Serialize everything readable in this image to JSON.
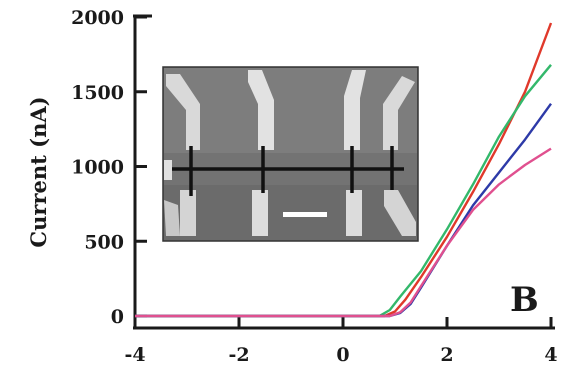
{
  "chart_data": {
    "type": "line",
    "title": "",
    "xlabel": "",
    "ylabel": "Current (nA)",
    "panel_label": "B",
    "xlim": [
      -4,
      4
    ],
    "ylim": [
      0,
      2000
    ],
    "x_ticks": [
      "-4",
      "-2",
      "0",
      "2",
      "4"
    ],
    "y_ticks": [
      "0",
      "500",
      "1000",
      "1500",
      "2000"
    ],
    "grid": false,
    "legend": "none",
    "series": [
      {
        "color": "#e0392b",
        "x": [
          -4,
          0.8,
          1.0,
          1.2,
          1.5,
          2.0,
          2.5,
          3.0,
          3.5,
          4.0
        ],
        "y": [
          0,
          0,
          30,
          110,
          260,
          530,
          830,
          1150,
          1500,
          1960
        ]
      },
      {
        "color": "#33b86b",
        "x": [
          -4,
          0.7,
          0.9,
          1.1,
          1.5,
          2.0,
          2.5,
          3.0,
          3.5,
          4.0
        ],
        "y": [
          0,
          0,
          40,
          130,
          300,
          580,
          880,
          1200,
          1470,
          1680
        ]
      },
      {
        "color": "#2d3aa8",
        "x": [
          -4,
          0.9,
          1.1,
          1.3,
          1.5,
          2.0,
          2.5,
          3.0,
          3.5,
          4.0
        ],
        "y": [
          0,
          0,
          20,
          80,
          190,
          470,
          740,
          960,
          1180,
          1420
        ]
      },
      {
        "color": "#e0508f",
        "x": [
          -4,
          0.9,
          1.1,
          1.3,
          1.5,
          2.0,
          2.5,
          3.0,
          3.5,
          4.0
        ],
        "y": [
          0,
          0,
          25,
          90,
          200,
          470,
          710,
          880,
          1010,
          1120
        ]
      }
    ],
    "inset": {
      "type": "image",
      "content": "SEM micrograph of a single long bar contacted by several electrodes, with a scale bar"
    }
  }
}
